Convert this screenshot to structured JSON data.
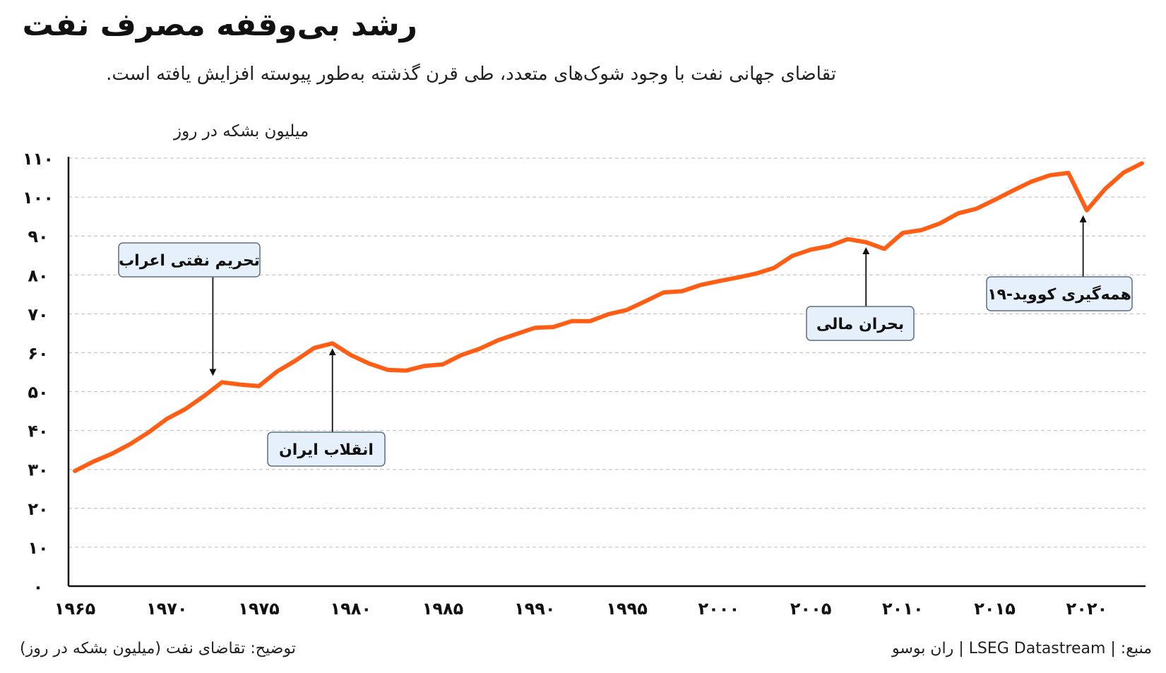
{
  "title": "رشد بی‌وقفه مصرف نفت",
  "subtitle": "تقاضای جهانی نفت با وجود شوک‌های متعدد، طی قرن گذشته به‌طور پیوسته افزایش یافته است.",
  "footer": {
    "note": "توضیح: تقاضای نفت (میلیون بشکه در روز)",
    "source": "منبع: | LSEG Datastream | ران بوسو"
  },
  "colors": {
    "line": "#ff5e14",
    "annotation_fill": "#e6f0fa",
    "annotation_stroke": "#5d6d80",
    "grid": "#c8c8c8",
    "axis": "#111111"
  },
  "chart_data": {
    "type": "line",
    "title": "رشد بی‌وقفه مصرف نفت",
    "ylabel": "میلیون بشکه در روز",
    "xlabel": "",
    "xlim": [
      1965,
      2023
    ],
    "ylim": [
      0,
      110
    ],
    "grid": true,
    "x_ticks": [
      1965,
      1970,
      1975,
      1980,
      1985,
      1990,
      1995,
      2000,
      2005,
      2010,
      2015,
      2020
    ],
    "x_tick_labels": [
      "۱۹۶۵",
      "۱۹۷۰",
      "۱۹۷۵",
      "۱۹۸۰",
      "۱۹۸۵",
      "۱۹۹۰",
      "۱۹۹۵",
      "۲۰۰۰",
      "۲۰۰۵",
      "۲۰۱۰",
      "۲۰۱۵",
      "۲۰۲۰"
    ],
    "y_ticks": [
      0,
      10,
      20,
      30,
      40,
      50,
      60,
      70,
      80,
      90,
      100,
      110
    ],
    "y_tick_labels": [
      "۰",
      "۱۰",
      "۲۰",
      "۳۰",
      "۴۰",
      "۵۰",
      "۶۰",
      "۷۰",
      "۸۰",
      "۹۰",
      "۱۰۰",
      "۱۱۰"
    ],
    "series": [
      {
        "x": [
          1965,
          1966,
          1967,
          1968,
          1969,
          1970,
          1971,
          1972,
          1973,
          1974,
          1975,
          1976,
          1977,
          1978,
          1979,
          1980,
          1981,
          1982,
          1983,
          1984,
          1985,
          1986,
          1987,
          1988,
          1989,
          1990,
          1991,
          1992,
          1993,
          1994,
          1995,
          1996,
          1997,
          1998,
          1999,
          2000,
          2001,
          2002,
          2003,
          2004,
          2005,
          2006,
          2007,
          2008,
          2009,
          2010,
          2011,
          2012,
          2013,
          2014,
          2015,
          2016,
          2017,
          2018,
          2019,
          2020,
          2021,
          2022,
          2023
        ],
        "values": [
          29.6,
          32.0,
          34.0,
          36.5,
          39.5,
          43.0,
          45.5,
          48.8,
          52.4,
          51.8,
          51.4,
          55.2,
          58.0,
          61.2,
          62.4,
          59.4,
          57.2,
          55.6,
          55.4,
          56.6,
          57.0,
          59.4,
          61.0,
          63.2,
          64.8,
          66.4,
          66.6,
          68.1,
          68.1,
          69.9,
          71.0,
          73.2,
          75.5,
          75.8,
          77.4,
          78.4,
          79.3,
          80.3,
          81.8,
          84.9,
          86.5,
          87.4,
          89.2,
          88.4,
          86.7,
          90.8,
          91.5,
          93.2,
          95.8,
          97.0,
          99.3,
          101.7,
          104.0,
          105.6,
          106.2,
          96.6,
          102.1,
          106.3,
          108.7
        ]
      }
    ],
    "annotations": [
      {
        "label": "تحریم نفتی اعراب",
        "x": 1972.5,
        "y": 52.4,
        "position": "above"
      },
      {
        "label": "انقلاب ایران",
        "x": 1979.0,
        "y": 62.4,
        "position": "below"
      },
      {
        "label": "بحران مالی",
        "x": 2008.0,
        "y": 88.4,
        "position": "below"
      },
      {
        "label": "همه‌گیری کووید-۱۹",
        "x": 2019.8,
        "y": 96.6,
        "position": "below"
      }
    ]
  }
}
